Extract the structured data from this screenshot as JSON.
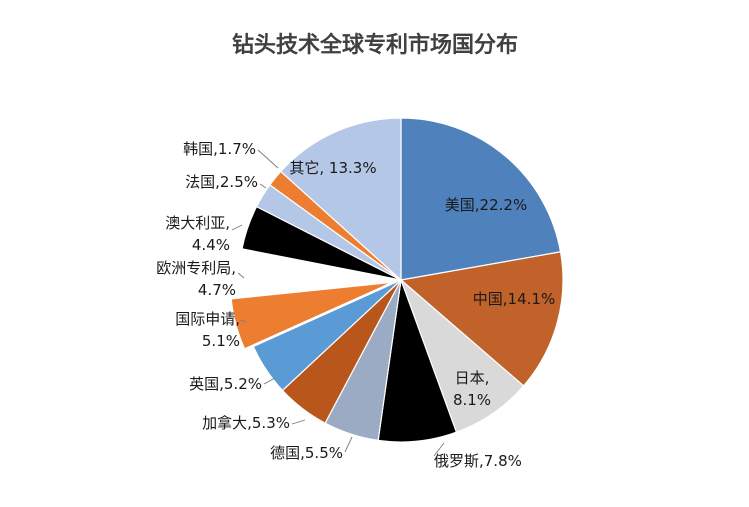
{
  "chart_data": {
    "type": "pie",
    "title": "钻头技术全球专利市场国分布",
    "slices": [
      {
        "label": "美国,22.2%",
        "value": 22.2,
        "color": "#4f81bd",
        "explode": false
      },
      {
        "label": "中国,14.1%",
        "value": 14.1,
        "color": "#c0622a",
        "explode": false
      },
      {
        "label": "日本,\n8.1%",
        "value": 8.1,
        "color": "#d9d9d9",
        "explode": false
      },
      {
        "label": "俄罗斯,7.8%",
        "value": 7.8,
        "color": "#000000",
        "explode": false
      },
      {
        "label": "德国,5.5%",
        "value": 5.5,
        "color": "#9aabc3",
        "explode": false
      },
      {
        "label": "加拿大,5.3%",
        "value": 5.3,
        "color": "#b8561b",
        "explode": false
      },
      {
        "label": "英国,5.2%",
        "value": 5.2,
        "color": "#5b9bd5",
        "explode": false
      },
      {
        "label": "国际申请,\n5.1%",
        "value": 5.1,
        "color": "#ed7d31",
        "explode": true
      },
      {
        "label": "欧洲专利局,\n4.7%",
        "value": 4.7,
        "color": "#ffffff",
        "explode": false
      },
      {
        "label": "澳大利亚,\n4.4%",
        "value": 4.4,
        "color": "#000000",
        "explode": false
      },
      {
        "label": "法国,2.5%",
        "value": 2.5,
        "color": "#b4c7e7",
        "explode": false
      },
      {
        "label": "韩国,1.7%",
        "value": 1.7,
        "color": "#ed7d31",
        "explode": false
      },
      {
        "label": "其它, 13.3%",
        "value": 13.3,
        "color": "#b4c7e7",
        "explode": false
      }
    ]
  }
}
